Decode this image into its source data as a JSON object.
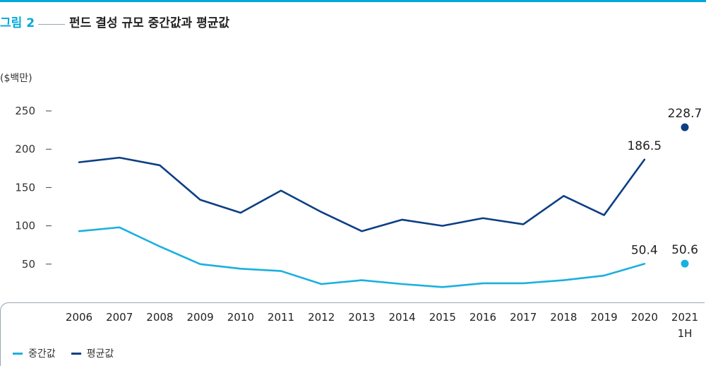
{
  "figure": {
    "label": "그림 2",
    "title": "펀드 결성 규모 중간값과 평균값"
  },
  "chart_data": {
    "type": "line",
    "unit_label": "($백만)",
    "categories": [
      "2006",
      "2007",
      "2008",
      "2009",
      "2010",
      "2011",
      "2012",
      "2013",
      "2014",
      "2015",
      "2016",
      "2017",
      "2018",
      "2019",
      "2020",
      "2021"
    ],
    "category_sublabels": {
      "2021": "1H"
    },
    "yticks": [
      50,
      100,
      150,
      200,
      250
    ],
    "ylim": [
      0,
      260
    ],
    "series": [
      {
        "name": "중간값",
        "color": "#1ab0df",
        "values": [
          93,
          98,
          73,
          50,
          44,
          41,
          24,
          29,
          24,
          20,
          25,
          25,
          29,
          35,
          50.4,
          null
        ],
        "point_2021H1": 50.6,
        "labels": {
          "2020": "50.4",
          "2021": "50.6"
        }
      },
      {
        "name": "평균값",
        "color": "#0c3f84",
        "values": [
          183,
          189,
          179,
          134,
          117,
          146,
          118,
          93,
          108,
          100,
          110,
          102,
          139,
          114,
          186.5,
          null
        ],
        "point_2021H1": 228.7,
        "labels": {
          "2020": "186.5",
          "2021": "228.7"
        }
      }
    ],
    "grid": false,
    "legend_position": "bottom-left"
  }
}
